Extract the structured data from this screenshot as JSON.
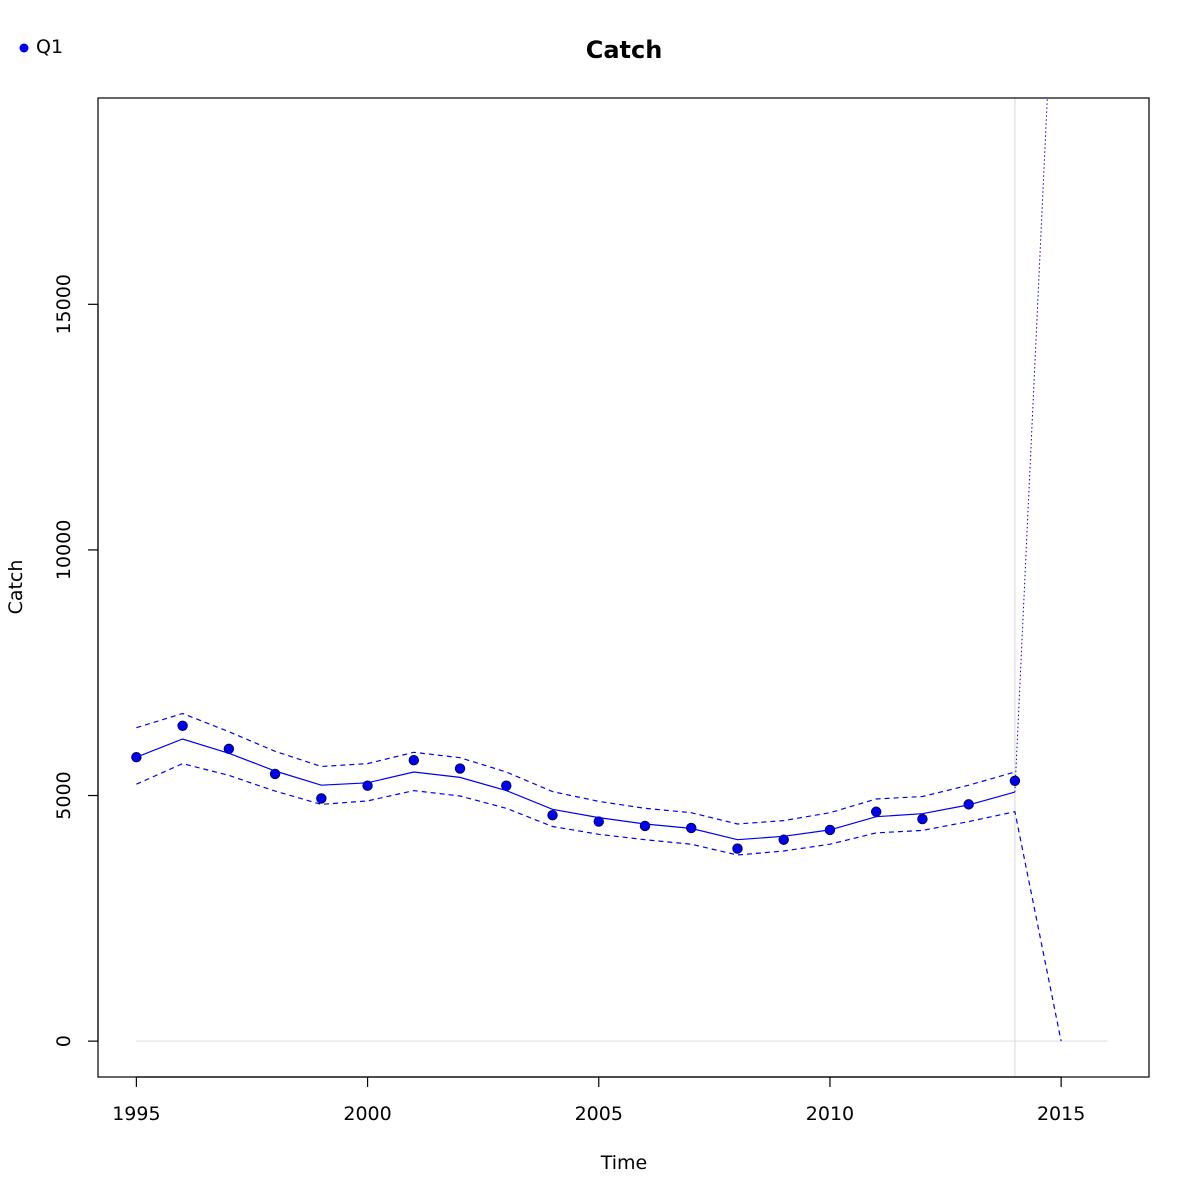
{
  "chart_data": {
    "type": "line",
    "title": "Catch",
    "xlabel": "Time",
    "ylabel": "Catch",
    "xlim": [
      1994.17,
      2016.9
    ],
    "ylim": [
      -730,
      19200
    ],
    "x_ticks": [
      {
        "value": 1995,
        "label": "1995"
      },
      {
        "value": 2000,
        "label": "2000"
      },
      {
        "value": 2005,
        "label": "2005"
      },
      {
        "value": 2010,
        "label": "2010"
      },
      {
        "value": 2015,
        "label": "2015"
      }
    ],
    "y_ticks": [
      {
        "value": 0,
        "label": "0"
      },
      {
        "value": 5000,
        "label": "5000"
      },
      {
        "value": 10000,
        "label": "10000"
      },
      {
        "value": 15000,
        "label": "15000"
      }
    ],
    "legend": {
      "label": "Q1",
      "position": "top-left",
      "color": "#0000ee"
    },
    "colors": {
      "series": "#0000ee",
      "reference": "#dddddd"
    },
    "reference_hline": {
      "y": 0,
      "x_from": 1995,
      "x_to": 2016
    },
    "reference_vline": {
      "x": 2014
    },
    "series": [
      {
        "name": "Q1",
        "style": "points",
        "x": [
          1995,
          1996,
          1997,
          1998,
          1999,
          2000,
          2001,
          2002,
          2003,
          2004,
          2005,
          2006,
          2007,
          2008,
          2009,
          2010,
          2011,
          2012,
          2013,
          2014
        ],
        "y": [
          5780,
          6420,
          5950,
          5440,
          4940,
          5200,
          5720,
          5550,
          5200,
          4600,
          4470,
          4380,
          4340,
          3920,
          4100,
          4300,
          4670,
          4520,
          4820,
          5300
        ]
      },
      {
        "style": "solid",
        "x": [
          1995,
          1996,
          1997,
          1998,
          1999,
          2000,
          2001,
          2002,
          2003,
          2004,
          2005,
          2006,
          2007,
          2008,
          2009,
          2010,
          2011,
          2012,
          2013,
          2014
        ],
        "y": [
          5780,
          6150,
          5860,
          5500,
          5210,
          5260,
          5480,
          5370,
          5100,
          4720,
          4550,
          4420,
          4330,
          4100,
          4170,
          4300,
          4570,
          4630,
          4810,
          5070
        ]
      },
      {
        "style": "dashed",
        "x": [
          1995,
          1996,
          1997,
          1998,
          1999,
          2000,
          2001,
          2002,
          2003,
          2004,
          2005,
          2006,
          2007,
          2008,
          2009,
          2010,
          2011,
          2012,
          2013,
          2014
        ],
        "y": [
          6380,
          6670,
          6300,
          5900,
          5590,
          5650,
          5880,
          5770,
          5480,
          5080,
          4880,
          4740,
          4650,
          4420,
          4490,
          4650,
          4930,
          4980,
          5210,
          5480
        ]
      },
      {
        "style": "dashed",
        "x": [
          1995,
          1996,
          1997,
          1998,
          1999,
          2000,
          2001,
          2002,
          2003,
          2004,
          2005,
          2006,
          2007,
          2008,
          2009,
          2010,
          2011,
          2012,
          2013,
          2014,
          2015
        ],
        "y": [
          5230,
          5650,
          5410,
          5090,
          4820,
          4890,
          5100,
          4990,
          4740,
          4370,
          4210,
          4100,
          4010,
          3790,
          3870,
          4010,
          4240,
          4290,
          4470,
          4670,
          0
        ]
      },
      {
        "style": "dotted",
        "x": [
          2014,
          2014.7
        ],
        "y": [
          5070,
          19200
        ]
      }
    ]
  }
}
